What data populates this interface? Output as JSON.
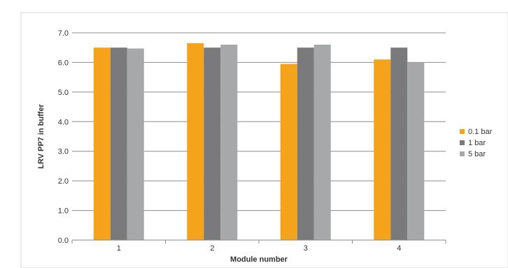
{
  "chart_data": {
    "type": "bar",
    "categories": [
      "1",
      "2",
      "3",
      "4"
    ],
    "series": [
      {
        "name": "0.1 bar",
        "color": "#f5a31a",
        "values": [
          6.5,
          6.65,
          5.95,
          6.1
        ]
      },
      {
        "name": "1 bar",
        "color": "#7a7a7c",
        "values": [
          6.5,
          6.5,
          6.5,
          6.5
        ]
      },
      {
        "name": "5 bar",
        "color": "#a7a8aa",
        "values": [
          6.47,
          6.6,
          6.6,
          6.0
        ]
      }
    ],
    "yticks": [
      "0.0",
      "1.0",
      "2.0",
      "3.0",
      "4.0",
      "5.0",
      "6.0",
      "7.0"
    ],
    "ylim": [
      0,
      7
    ],
    "xlabel": "Module number",
    "ylabel": "LRV PP7 in buffer",
    "grid": true,
    "legend_position": "right"
  }
}
